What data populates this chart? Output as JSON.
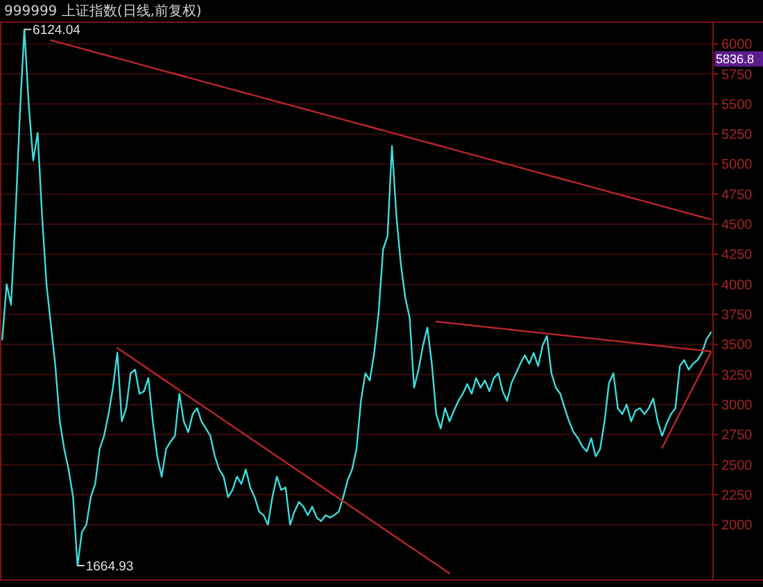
{
  "chart_data": {
    "type": "line",
    "title": "999999 上证指数(日线,前复权)",
    "categories": [
      null,
      null,
      null,
      null,
      null,
      null,
      null,
      null,
      null,
      null,
      null,
      null,
      null,
      null,
      null,
      null,
      null,
      null,
      null,
      null,
      null,
      null,
      null,
      null,
      null,
      null,
      null,
      null,
      null,
      null,
      null,
      null,
      null,
      null,
      null,
      null,
      null,
      null,
      null,
      null,
      null,
      null,
      null,
      null,
      null,
      null,
      null,
      null,
      null,
      null,
      null,
      null,
      null,
      null,
      null,
      null,
      null,
      null,
      null,
      null,
      null,
      null,
      null,
      null,
      null,
      null,
      null,
      null,
      null,
      null,
      null,
      null,
      null,
      null,
      null,
      null,
      null,
      null,
      null,
      null,
      null,
      null,
      null,
      null,
      null,
      null,
      null,
      null,
      null,
      null,
      null,
      null,
      null,
      null,
      null,
      null,
      null,
      null,
      null,
      null,
      null,
      null,
      null,
      null,
      null,
      null,
      null,
      null,
      null,
      null,
      null,
      null,
      null,
      null,
      null,
      null,
      null,
      null,
      null,
      null,
      null,
      null,
      null,
      null,
      null,
      null,
      null,
      null,
      null,
      null,
      null,
      null,
      null,
      null,
      null,
      null,
      null,
      null,
      null,
      null,
      null,
      null,
      null,
      null,
      null,
      null,
      null,
      null,
      null,
      null,
      null,
      null,
      null,
      null,
      null,
      null,
      null,
      null,
      null,
      null,
      null
    ],
    "ylim": [
      1540,
      6180
    ],
    "yticks": [
      2000,
      2250,
      2500,
      2750,
      3000,
      3250,
      3500,
      3750,
      4000,
      4250,
      4500,
      4750,
      5000,
      5250,
      5500,
      5750,
      6000
    ],
    "grid": "y",
    "tick_labels": "y",
    "series": [
      {
        "color": "#3fdcdc",
        "values": [
          3540,
          4000,
          3830,
          4570,
          5430,
          6120,
          5490,
          5030,
          5260,
          4570,
          4000,
          3660,
          3320,
          2860,
          2630,
          2460,
          2230,
          1660,
          1940,
          2000,
          2230,
          2340,
          2630,
          2740,
          2920,
          3140,
          3430,
          2860,
          2970,
          3260,
          3290,
          3090,
          3110,
          3220,
          2860,
          2570,
          2400,
          2630,
          2690,
          2740,
          3090,
          2860,
          2770,
          2920,
          2970,
          2860,
          2800,
          2740,
          2570,
          2460,
          2400,
          2230,
          2290,
          2400,
          2340,
          2460,
          2310,
          2230,
          2110,
          2080,
          2000,
          2230,
          2400,
          2290,
          2310,
          2000,
          2110,
          2190,
          2150,
          2080,
          2150,
          2060,
          2030,
          2080,
          2060,
          2080,
          2110,
          2230,
          2370,
          2460,
          2630,
          3030,
          3260,
          3200,
          3430,
          3770,
          4290,
          4400,
          5150,
          4570,
          4170,
          3890,
          3720,
          3140,
          3290,
          3490,
          3640,
          3340,
          2920,
          2800,
          2970,
          2860,
          2950,
          3030,
          3090,
          3170,
          3090,
          3220,
          3140,
          3200,
          3110,
          3220,
          3260,
          3110,
          3030,
          3180,
          3260,
          3340,
          3410,
          3340,
          3430,
          3320,
          3490,
          3570,
          3260,
          3140,
          3090,
          2970,
          2860,
          2770,
          2720,
          2650,
          2610,
          2720,
          2570,
          2630,
          2860,
          3180,
          3260,
          2970,
          2920,
          3000,
          2860,
          2950,
          2970,
          2920,
          2970,
          3050,
          2860,
          2740,
          2840,
          2920,
          2970,
          3320,
          3370,
          3290,
          3340,
          3370,
          3430,
          3540,
          3600
        ]
      },
      {
        "type": "line",
        "color": "#b8262b",
        "values": [
          null,
          null,
          null,
          null,
          null,
          null,
          null,
          null,
          null,
          null,
          null,
          6030,
          6020,
          6010,
          6000,
          5990,
          5980,
          5970,
          5960,
          5950,
          5940,
          5930,
          5920,
          5910,
          5900,
          5890,
          5880,
          5870,
          5860,
          5850,
          5840,
          5830,
          5820,
          5810,
          5800,
          5790,
          5780,
          5770,
          5760,
          5750,
          5740,
          5730,
          5720,
          5710,
          5700,
          5690,
          5680,
          5670,
          5660,
          5650,
          5640,
          5630,
          5620,
          5610,
          5600,
          5590,
          5580,
          5570,
          5560,
          5550,
          5540,
          5530,
          5520,
          5510,
          5500,
          5490,
          5480,
          5470,
          5460,
          5450,
          5440,
          5430,
          5420,
          5410,
          5400,
          5390,
          5380,
          5370,
          5360,
          5350,
          5340,
          5330,
          5320,
          5310,
          5300,
          5290,
          5280,
          5270,
          5260,
          5250,
          5240,
          5230,
          5220,
          5210,
          5200,
          5190,
          5180,
          5170,
          5160,
          5150,
          5140,
          5130,
          5120,
          5110,
          5100,
          5090,
          5080,
          5070,
          5060,
          5050,
          5040,
          5030,
          5020,
          5010,
          5000,
          4990,
          4980,
          4970,
          4960,
          4950,
          4940,
          4930,
          4920,
          4910,
          4900,
          4890,
          4880,
          4870,
          4860,
          4850,
          4840,
          4830,
          4820,
          4810,
          4800,
          4790,
          4780,
          4770,
          4760,
          4750,
          4740,
          4730,
          4720,
          4710,
          4700,
          4690,
          4680,
          4670,
          4660,
          4650,
          4640,
          4630,
          4620,
          4610,
          4600,
          4590,
          4580,
          4570,
          4560,
          4550,
          4540
        ]
      },
      {
        "type": "line",
        "color": "#b8262b",
        "values": [
          null,
          null,
          null,
          null,
          null,
          null,
          null,
          null,
          null,
          null,
          null,
          null,
          null,
          null,
          null,
          null,
          null,
          null,
          null,
          null,
          null,
          null,
          null,
          null,
          null,
          null,
          3470,
          3445,
          3420,
          3395,
          3370,
          3345,
          3320,
          3295,
          3270,
          3245,
          3220,
          3195,
          3170,
          3145,
          3120,
          3095,
          3070,
          3045,
          3020,
          2995,
          2970,
          2945,
          2920,
          2895,
          2870,
          2845,
          2820,
          2795,
          2770,
          2745,
          2720,
          2695,
          2670,
          2645,
          2620,
          2595,
          2570,
          2545,
          2520,
          2495,
          2470,
          2445,
          2420,
          2395,
          2370,
          2345,
          2320,
          2295,
          2270,
          2245,
          2220,
          2195,
          2170,
          2145,
          2120,
          2095,
          2070,
          2045,
          2020,
          1995,
          1970,
          1945,
          1920,
          1895,
          1870,
          1845,
          1820,
          1795,
          1770,
          1745,
          1720,
          1695,
          1670,
          1645,
          1620,
          1595,
          null,
          null,
          null,
          null,
          null,
          null,
          null,
          null,
          null,
          null,
          null,
          null,
          null,
          null,
          null,
          null,
          null,
          null,
          null,
          null,
          null,
          null,
          null,
          null,
          null,
          null,
          null,
          null,
          null,
          null,
          null,
          null,
          null,
          null,
          null,
          null,
          null,
          null,
          null,
          null,
          null,
          null,
          null,
          null,
          null,
          null,
          null,
          null,
          null,
          null,
          null,
          null,
          null,
          null,
          null,
          null,
          null,
          null,
          null
        ]
      },
      {
        "type": "line",
        "color": "#b8262b",
        "values": [
          null,
          null,
          null,
          null,
          null,
          null,
          null,
          null,
          null,
          null,
          null,
          null,
          null,
          null,
          null,
          null,
          null,
          null,
          null,
          null,
          null,
          null,
          null,
          null,
          null,
          null,
          null,
          null,
          null,
          null,
          null,
          null,
          null,
          null,
          null,
          null,
          null,
          null,
          null,
          null,
          null,
          null,
          null,
          null,
          null,
          null,
          null,
          null,
          null,
          null,
          null,
          null,
          null,
          null,
          null,
          null,
          null,
          null,
          null,
          null,
          null,
          null,
          null,
          null,
          null,
          null,
          null,
          null,
          null,
          null,
          null,
          null,
          null,
          null,
          null,
          null,
          null,
          null,
          null,
          null,
          null,
          null,
          null,
          null,
          null,
          null,
          null,
          null,
          null,
          null,
          null,
          null,
          null,
          null,
          null,
          null,
          null,
          null,
          3690,
          3686,
          3682,
          3678,
          3674,
          3670,
          3666,
          3662,
          3658,
          3654,
          3650,
          3646,
          3642,
          3638,
          3634,
          3630,
          3626,
          3622,
          3618,
          3614,
          3610,
          3606,
          3602,
          3598,
          3594,
          3590,
          3586,
          3582,
          3578,
          3574,
          3570,
          3566,
          3562,
          3558,
          3554,
          3550,
          3546,
          3542,
          3538,
          3534,
          3530,
          3526,
          3522,
          3518,
          3514,
          3510,
          3506,
          3502,
          3498,
          3494,
          3490,
          3486,
          3482,
          3478,
          3474,
          3470,
          3466,
          3462,
          3458,
          3454,
          3450,
          3446,
          3442
        ]
      },
      {
        "type": "line",
        "color": "#b8262b",
        "values": [
          null,
          null,
          null,
          null,
          null,
          null,
          null,
          null,
          null,
          null,
          null,
          null,
          null,
          null,
          null,
          null,
          null,
          null,
          null,
          null,
          null,
          null,
          null,
          null,
          null,
          null,
          null,
          null,
          null,
          null,
          null,
          null,
          null,
          null,
          null,
          null,
          null,
          null,
          null,
          null,
          null,
          null,
          null,
          null,
          null,
          null,
          null,
          null,
          null,
          null,
          null,
          null,
          null,
          null,
          null,
          null,
          null,
          null,
          null,
          null,
          null,
          null,
          null,
          null,
          null,
          null,
          null,
          null,
          null,
          null,
          null,
          null,
          null,
          null,
          null,
          null,
          null,
          null,
          null,
          null,
          null,
          null,
          null,
          null,
          null,
          null,
          null,
          null,
          null,
          null,
          null,
          null,
          null,
          null,
          null,
          null,
          null,
          null,
          null,
          null,
          null,
          null,
          null,
          null,
          null,
          null,
          null,
          null,
          null,
          null,
          null,
          null,
          null,
          null,
          null,
          null,
          null,
          null,
          null,
          null,
          null,
          null,
          null,
          null,
          null,
          null,
          null,
          null,
          null,
          null,
          null,
          null,
          null,
          null,
          null,
          null,
          null,
          null,
          null,
          null,
          null,
          null,
          null,
          null,
          null,
          null,
          null,
          null,
          null,
          2640,
          2712,
          2784,
          2856,
          2928,
          3000,
          3072,
          3144,
          3216,
          3288,
          3360,
          3432
        ]
      }
    ],
    "annotations": [
      "6124.04",
      "1664.93",
      "5836.8"
    ]
  }
}
